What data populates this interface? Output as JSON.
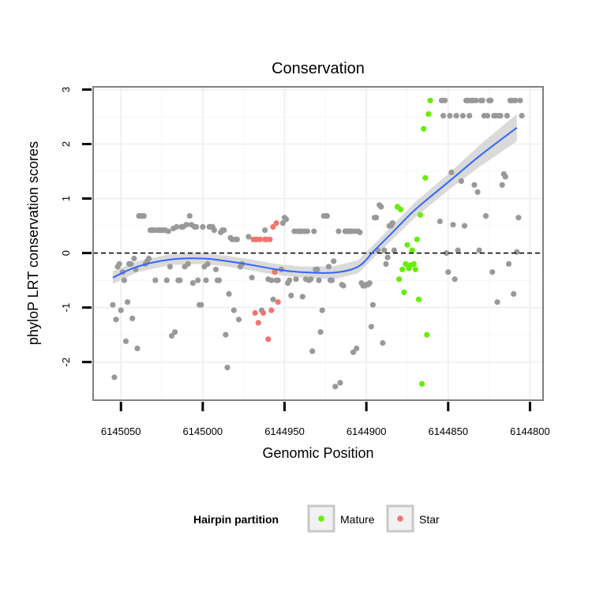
{
  "chart_data": {
    "type": "scatter",
    "title": "Conservation",
    "xlabel": "Genomic Position",
    "ylabel": "phyloP LRT conservation scores",
    "xlim": [
      6145067,
      6144792
    ],
    "ylim": [
      -2.7,
      3.05
    ],
    "x_reversed": true,
    "x_ticks": [
      6145050,
      6145000,
      6144950,
      6144900,
      6144850,
      6144800
    ],
    "x_tick_labels": [
      "6145050",
      "6145000",
      "6144950",
      "6144900",
      "6144850",
      "6144800"
    ],
    "y_ticks": [
      -2,
      -1,
      0,
      1,
      2,
      3
    ],
    "y_tick_labels": [
      "-2",
      "-1",
      "0",
      "1",
      "2",
      "3"
    ],
    "reference_line": {
      "y": 0,
      "style": "dashed",
      "color": "#000000"
    },
    "grid": true,
    "legend": {
      "title": "Hairpin partition",
      "position": "bottom",
      "entries": [
        {
          "label": "Mature",
          "color": "#66ee00"
        },
        {
          "label": "Star",
          "color": "#f0766d"
        }
      ]
    },
    "colors": {
      "other": "#999999",
      "mature": "#66ee00",
      "star": "#f0766d",
      "smooth": "#3366ff",
      "band": "#d3d3d3"
    },
    "smooth": {
      "x": [
        6145055,
        6145040,
        6145020,
        6145000,
        6144985,
        6144970,
        6144955,
        6144940,
        6144920,
        6144905,
        6144895,
        6144885,
        6144870,
        6144850,
        6144830,
        6144808
      ],
      "y": [
        -0.45,
        -0.25,
        -0.12,
        -0.1,
        -0.15,
        -0.22,
        -0.3,
        -0.35,
        -0.36,
        -0.25,
        0.05,
        0.35,
        0.8,
        1.3,
        1.8,
        2.3
      ],
      "se": [
        0.12,
        0.1,
        0.1,
        0.1,
        0.1,
        0.1,
        0.1,
        0.1,
        0.12,
        0.12,
        0.12,
        0.13,
        0.14,
        0.15,
        0.2,
        0.25
      ]
    },
    "series": [
      {
        "name": "Other",
        "points": [
          [
            6145055,
            -0.95
          ],
          [
            6145054,
            -2.28
          ],
          [
            6145053,
            -1.22
          ],
          [
            6145052,
            -0.25
          ],
          [
            6145051,
            -0.2
          ],
          [
            6145050,
            -1.05
          ],
          [
            6145049,
            -0.35
          ],
          [
            6145048,
            -0.5
          ],
          [
            6145047,
            -1.62
          ],
          [
            6145046,
            -0.9
          ],
          [
            6145045,
            -0.2
          ],
          [
            6145044,
            -0.2
          ],
          [
            6145043,
            -1.2
          ],
          [
            6145042,
            -0.1
          ],
          [
            6145041,
            -0.3
          ],
          [
            6145040,
            -1.75
          ],
          [
            6145039,
            0.68
          ],
          [
            6145038,
            0.68
          ],
          [
            6145037,
            0.68
          ],
          [
            6145036,
            0.68
          ],
          [
            6145035,
            -0.2
          ],
          [
            6145034,
            -0.15
          ],
          [
            6145033,
            -0.1
          ],
          [
            6145032,
            0.42
          ],
          [
            6145031,
            0.42
          ],
          [
            6145030,
            0.42
          ],
          [
            6145029,
            -0.5
          ],
          [
            6145028,
            0.42
          ],
          [
            6145027,
            0.42
          ],
          [
            6145026,
            0.42
          ],
          [
            6145025,
            0.42
          ],
          [
            6145024,
            0.42
          ],
          [
            6145023,
            0.42
          ],
          [
            6145022,
            -0.5
          ],
          [
            6145021,
            0.4
          ],
          [
            6145020,
            -0.25
          ],
          [
            6145019,
            -1.52
          ],
          [
            6145018,
            0.45
          ],
          [
            6145017,
            -1.45
          ],
          [
            6145016,
            0.48
          ],
          [
            6145015,
            -0.5
          ],
          [
            6145014,
            -0.5
          ],
          [
            6145013,
            0.48
          ],
          [
            6145012,
            0.48
          ],
          [
            6145011,
            -0.25
          ],
          [
            6145010,
            0.52
          ],
          [
            6145009,
            -0.2
          ],
          [
            6145008,
            0.68
          ],
          [
            6145007,
            0.52
          ],
          [
            6145006,
            -0.55
          ],
          [
            6145005,
            0.48
          ],
          [
            6145004,
            0.48
          ],
          [
            6145003,
            -0.5
          ],
          [
            6145002,
            -0.95
          ],
          [
            6145001,
            -0.95
          ],
          [
            6145000,
            0.48
          ],
          [
            6144999,
            -0.25
          ],
          [
            6144998,
            -0.5
          ],
          [
            6144997,
            -0.2
          ],
          [
            6144996,
            0.48
          ],
          [
            6144995,
            0.48
          ],
          [
            6144994,
            0.48
          ],
          [
            6144993,
            0.42
          ],
          [
            6144992,
            -0.3
          ],
          [
            6144991,
            -0.5
          ],
          [
            6144990,
            -0.5
          ],
          [
            6144989,
            0.38
          ],
          [
            6144988,
            0.42
          ],
          [
            6144987,
            0.42
          ],
          [
            6144986,
            -1.5
          ],
          [
            6144985,
            -2.1
          ],
          [
            6144984,
            -0.75
          ],
          [
            6144983,
            0.28
          ],
          [
            6144982,
            0.25
          ],
          [
            6144981,
            -1.05
          ],
          [
            6144980,
            0.25
          ],
          [
            6144979,
            0.25
          ],
          [
            6144978,
            -1.22
          ],
          [
            6144977,
            -0.25
          ],
          [
            6144976,
            -0.2
          ],
          [
            6144972,
            0.3
          ],
          [
            6144970,
            -0.45
          ],
          [
            6144968,
            0.25
          ],
          [
            6144964,
            -1.05
          ],
          [
            6144962,
            0.42
          ],
          [
            6144960,
            -0.48
          ],
          [
            6144958,
            -0.5
          ],
          [
            6144957,
            -0.85
          ],
          [
            6144955,
            -0.5
          ],
          [
            6144954,
            -0.5
          ],
          [
            6144952,
            -0.3
          ],
          [
            6144951,
            0.55
          ],
          [
            6144950,
            0.65
          ],
          [
            6144949,
            0.62
          ],
          [
            6144948,
            -0.55
          ],
          [
            6144947,
            -0.5
          ],
          [
            6144946,
            -0.78
          ],
          [
            6144944,
            0.4
          ],
          [
            6144943,
            -0.48
          ],
          [
            6144942,
            0.4
          ],
          [
            6144941,
            0.4
          ],
          [
            6144940,
            0.4
          ],
          [
            6144939,
            -0.8
          ],
          [
            6144938,
            0.4
          ],
          [
            6144937,
            -0.48
          ],
          [
            6144936,
            0.4
          ],
          [
            6144935,
            -0.5
          ],
          [
            6144934,
            -0.48
          ],
          [
            6144933,
            -1.8
          ],
          [
            6144932,
            0.4
          ],
          [
            6144931,
            -0.3
          ],
          [
            6144930,
            -0.3
          ],
          [
            6144929,
            -0.5
          ],
          [
            6144928,
            -1.45
          ],
          [
            6144927,
            -1.05
          ],
          [
            6144926,
            0.68
          ],
          [
            6144925,
            0.68
          ],
          [
            6144924,
            0.68
          ],
          [
            6144923,
            -0.25
          ],
          [
            6144922,
            -0.5
          ],
          [
            6144921,
            -0.5
          ],
          [
            6144920,
            -0.15
          ],
          [
            6144919,
            -2.45
          ],
          [
            6144917,
            0.4
          ],
          [
            6144916,
            -2.38
          ],
          [
            6144915,
            -0.58
          ],
          [
            6144914,
            -0.6
          ],
          [
            6144913,
            0.4
          ],
          [
            6144912,
            0.4
          ],
          [
            6144911,
            0.4
          ],
          [
            6144910,
            0.4
          ],
          [
            6144909,
            0.4
          ],
          [
            6144908,
            -1.82
          ],
          [
            6144907,
            0.4
          ],
          [
            6144906,
            -1.75
          ],
          [
            6144905,
            0.4
          ],
          [
            6144904,
            0.38
          ],
          [
            6144903,
            -0.55
          ],
          [
            6144902,
            -0.6
          ],
          [
            6144901,
            -0.6
          ],
          [
            6144900,
            -0.58
          ],
          [
            6144899,
            -0.58
          ],
          [
            6144898,
            -0.55
          ],
          [
            6144897,
            -1.35
          ],
          [
            6144896,
            -0.95
          ],
          [
            6144895,
            0.65
          ],
          [
            6144894,
            0.65
          ],
          [
            6144893,
            0.05
          ],
          [
            6144892,
            0.88
          ],
          [
            6144891,
            0.85
          ],
          [
            6144890,
            -1.65
          ],
          [
            6144889,
            0.05
          ],
          [
            6144888,
            -0.2
          ],
          [
            6144887,
            -0.08
          ],
          [
            6144886,
            0.5
          ],
          [
            6144885,
            0.5
          ],
          [
            6144884,
            0.55
          ],
          [
            6144883,
            0.05
          ],
          [
            6144855,
            0.58
          ],
          [
            6144854,
            2.8
          ],
          [
            6144853,
            2.52
          ],
          [
            6144852,
            2.8
          ],
          [
            6144851,
            0.0
          ],
          [
            6144850,
            -0.35
          ],
          [
            6144849,
            2.52
          ],
          [
            6144848,
            1.48
          ],
          [
            6144847,
            0.52
          ],
          [
            6144846,
            -0.48
          ],
          [
            6144845,
            2.52
          ],
          [
            6144844,
            0.05
          ],
          [
            6144842,
            1.32
          ],
          [
            6144841,
            2.52
          ],
          [
            6144840,
            0.5
          ],
          [
            6144839,
            2.8
          ],
          [
            6144838,
            2.8
          ],
          [
            6144837,
            2.52
          ],
          [
            6144836,
            2.8
          ],
          [
            6144835,
            2.8
          ],
          [
            6144834,
            1.25
          ],
          [
            6144833,
            2.8
          ],
          [
            6144832,
            1.12
          ],
          [
            6144831,
            0.05
          ],
          [
            6144830,
            2.8
          ],
          [
            6144829,
            2.8
          ],
          [
            6144828,
            2.52
          ],
          [
            6144827,
            0.68
          ],
          [
            6144826,
            2.52
          ],
          [
            6144825,
            2.8
          ],
          [
            6144824,
            2.8
          ],
          [
            6144823,
            -0.35
          ],
          [
            6144822,
            2.52
          ],
          [
            6144821,
            2.52
          ],
          [
            6144820,
            -0.9
          ],
          [
            6144819,
            2.52
          ],
          [
            6144818,
            2.52
          ],
          [
            6144817,
            1.25
          ],
          [
            6144816,
            1.45
          ],
          [
            6144815,
            1.4
          ],
          [
            6144814,
            2.52
          ],
          [
            6144813,
            -0.2
          ],
          [
            6144812,
            2.8
          ],
          [
            6144811,
            2.8
          ],
          [
            6144810,
            -0.75
          ],
          [
            6144809,
            2.8
          ],
          [
            6144808,
            0.02
          ],
          [
            6144807,
            0.65
          ],
          [
            6144806,
            2.8
          ],
          [
            6144805,
            2.52
          ]
        ]
      },
      {
        "name": "Mature",
        "points": [
          [
            6144881,
            0.85
          ],
          [
            6144879,
            0.8
          ],
          [
            6144880,
            -0.48
          ],
          [
            6144878,
            -0.3
          ],
          [
            6144877,
            -0.72
          ],
          [
            6144876,
            -0.2
          ],
          [
            6144875,
            0.15
          ],
          [
            6144874,
            -0.28
          ],
          [
            6144873,
            -0.22
          ],
          [
            6144872,
            0.05
          ],
          [
            6144871,
            -0.2
          ],
          [
            6144870,
            -0.3
          ],
          [
            6144869,
            0.25
          ],
          [
            6144868,
            -0.85
          ],
          [
            6144867,
            0.7
          ],
          [
            6144866,
            -2.4
          ],
          [
            6144865,
            2.28
          ],
          [
            6144864,
            1.38
          ],
          [
            6144863,
            -1.5
          ],
          [
            6144862,
            2.55
          ],
          [
            6144861,
            2.8
          ]
        ]
      },
      {
        "name": "Star",
        "points": [
          [
            6144969,
            0.25
          ],
          [
            6144968,
            -1.1
          ],
          [
            6144967,
            0.25
          ],
          [
            6144966,
            -1.28
          ],
          [
            6144965,
            0.25
          ],
          [
            6144963,
            -1.1
          ],
          [
            6144962,
            0.25
          ],
          [
            6144961,
            0.25
          ],
          [
            6144960,
            -1.58
          ],
          [
            6144959,
            0.25
          ],
          [
            6144958,
            -1.05
          ],
          [
            6144957,
            0.48
          ],
          [
            6144956,
            -0.35
          ],
          [
            6144955,
            0.55
          ],
          [
            6144954,
            -0.9
          ]
        ]
      }
    ]
  }
}
